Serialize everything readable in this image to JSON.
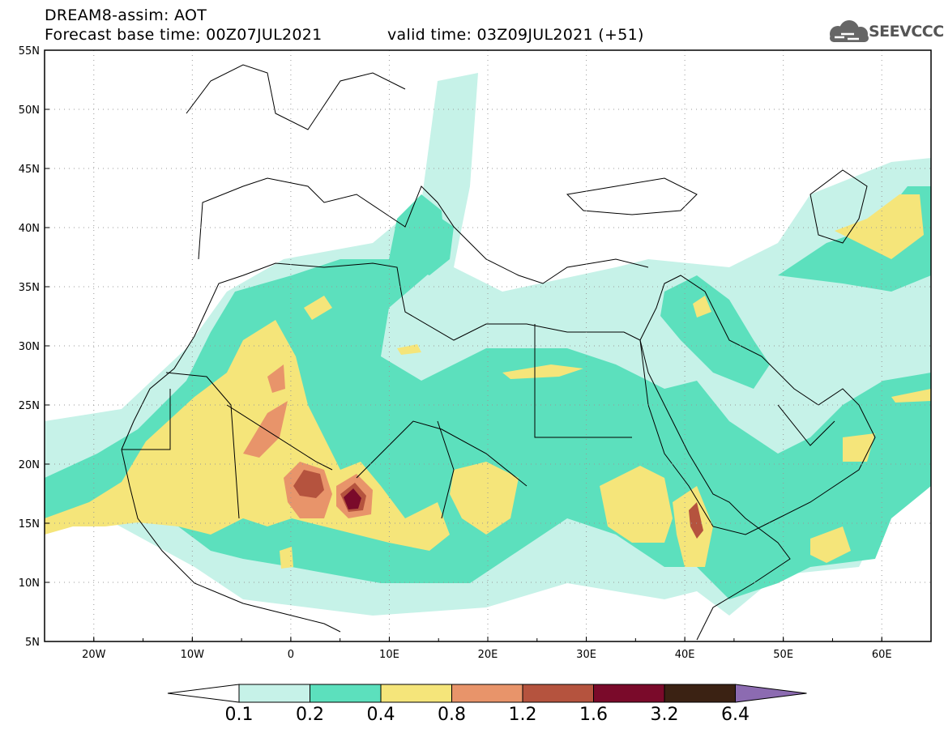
{
  "header": {
    "line1": "DREAM8-assim: AOT",
    "line2": "Forecast base time: 00Z07JUL2021",
    "valid": "valid time: 03Z09JUL2021 (+51)"
  },
  "logo": {
    "text": "SEEVCCC",
    "icon": "cloud-icon"
  },
  "map": {
    "lat_range": [
      5,
      55
    ],
    "lon_range": [
      -25,
      65
    ],
    "lat_labels": [
      "55N",
      "50N",
      "45N",
      "40N",
      "35N",
      "30N",
      "25N",
      "20N",
      "15N",
      "10N",
      "5N"
    ],
    "lon_labels": [
      "20W",
      "10W",
      "0",
      "10E",
      "20E",
      "30E",
      "40E",
      "50E",
      "60E"
    ],
    "grid": "dotted"
  },
  "colorbar": {
    "labels": [
      "0.1",
      "0.2",
      "0.4",
      "0.8",
      "1.2",
      "1.6",
      "3.2",
      "6.4"
    ],
    "colors": [
      "#ffffff",
      "#c6f2e8",
      "#5ce0bd",
      "#f5e57a",
      "#e8946a",
      "#b5533e",
      "#7a0a2a",
      "#3b2213",
      "#8c6bb1"
    ]
  },
  "palette": {
    "c01": "#c6f2e8",
    "c02": "#5ce0bd",
    "c04": "#f5e57a",
    "c08": "#e8946a",
    "c12": "#b5533e",
    "c16": "#7a0a2a"
  }
}
